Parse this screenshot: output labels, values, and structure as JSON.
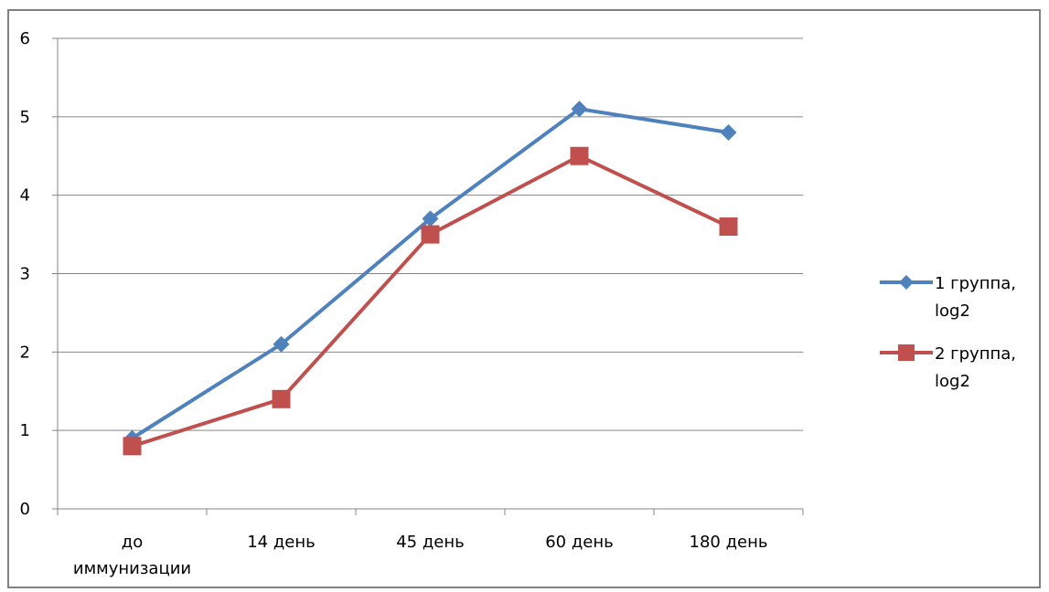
{
  "chart_data": {
    "type": "line",
    "title": "",
    "xlabel": "",
    "ylabel": "",
    "categories": [
      [
        "до",
        "иммунизации"
      ],
      [
        "14 день"
      ],
      [
        "45 день"
      ],
      [
        "60 день"
      ],
      [
        "180 день"
      ]
    ],
    "ylim": [
      0,
      6
    ],
    "yticks": [
      0,
      1,
      2,
      3,
      4,
      5,
      6
    ],
    "grid": true,
    "legend_position": "right",
    "series": [
      {
        "name": [
          "1 группа,",
          "log2"
        ],
        "color": "#4F81BD",
        "marker": "diamond",
        "values": [
          0.9,
          2.1,
          3.7,
          5.1,
          4.8
        ]
      },
      {
        "name": [
          "2 группа,",
          "log2"
        ],
        "color": "#C0504D",
        "marker": "square",
        "values": [
          0.8,
          1.4,
          3.5,
          4.5,
          3.6
        ]
      }
    ]
  }
}
